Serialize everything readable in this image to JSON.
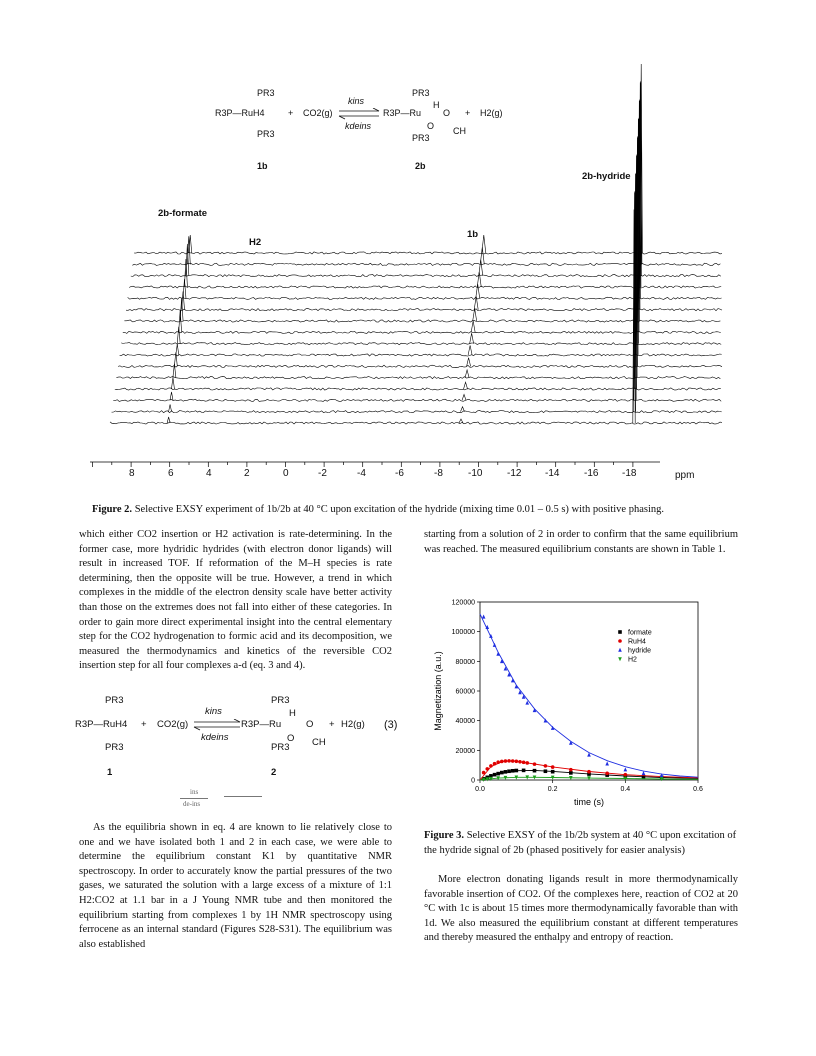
{
  "scheme_top": {
    "left_ligand_top": "PR3",
    "left_center": "R3P—RuH4",
    "left_ligand_bottom": "PR3",
    "plus1": "+",
    "co2": "CO2(g)",
    "k_forward": "kins",
    "k_reverse": "kdeins",
    "right_ligand_top": "PR3",
    "right_H": "H",
    "right_center": "R3P—Ru",
    "right_O1": "O",
    "right_O2": "O",
    "right_CH": "CH",
    "right_ligand_bottom": "PR3",
    "plus2": "+",
    "h2": "H2(g)",
    "label_left": "1b",
    "label_right": "2b"
  },
  "spectrum": {
    "label_formate": "2b-formate",
    "label_h2": "H2",
    "label_1b": "1b",
    "label_hydride": "2b-hydride",
    "axis_ticks": [
      "8",
      "6",
      "4",
      "2",
      "0",
      "-2",
      "-4",
      "-6",
      "-8",
      "-10",
      "-12",
      "-14",
      "-16",
      "-18"
    ],
    "axis_unit": "ppm"
  },
  "figure2_caption": {
    "label": "Figure 2.",
    "text": "Selective EXSY experiment of 1b/2b at 40 °C upon excitation of the hydride (mixing time 0.01 – 0.5 s) with positive phasing."
  },
  "left_column": {
    "para1": "which either CO2 insertion or H2 activation is rate-determining. In the former case, more hydridic hydrides (with electron donor ligands) will result in increased TOF. If reformation of the M–H species is rate determining, then the opposite will be true. However, a trend in which complexes in the middle of the electron density scale have better activity than those on the extremes does not fall into either of these categories. In order to gain more direct experimental insight into the central elementary step for the CO2 hydrogenation to formic acid and its decomposition, we measured the thermodynamics and kinetics of the reversible CO2 insertion step for all four complexes a-d (eq. 3 and 4).",
    "para2": "As the equilibria shown in eq. 4 are known to lie relatively close to one and we have isolated both 1 and 2 in each case, we were able to determine the equilibrium constant K1 by quantitative NMR spectroscopy. In order to accurately know the partial pressures of the two gases, we saturated the solution with a large excess of a mixture of 1:1 H2:CO2 at 1.1 bar in a J Young NMR tube and then monitored the equilibrium starting from complexes 1 by 1H NMR spectroscopy using ferrocene as an internal standard (Figures S28-S31). The equilibrium was also established"
  },
  "equation3": {
    "left_ligand_top": "PR3",
    "left_center": "R3P—RuH4",
    "left_ligand_bottom": "PR3",
    "plus1": "+",
    "co2": "CO2(g)",
    "k_forward": "kins",
    "k_reverse": "kdeins",
    "right_ligand_top": "PR3",
    "right_H": "H",
    "right_center": "R3P—Ru",
    "right_O1": "O",
    "right_O2": "O",
    "right_CH": "CH",
    "right_ligand_bottom": "PR3",
    "plus2": "+",
    "h2": "H2(g)",
    "number": "(3)",
    "label_left": "1",
    "label_right": "2",
    "fraction_top": "ins",
    "fraction_bottom": "de-ins"
  },
  "right_column": {
    "para1": "starting from a solution of 2 in order to confirm that the same equilibrium was reached. The measured equilibrium constants are shown in Table 1.",
    "para2": "More electron donating ligands result in more thermodynamically favorable insertion of CO2. Of the complexes here, reaction of CO2 at 20 °C with 1c is about 15 times more thermodynamically favorable than with 1d. We also measured the equilibrium constant at different temperatures and thereby measured the enthalpy and entropy of reaction."
  },
  "figure3_caption": {
    "label": "Figure 3.",
    "text": "Selective EXSY of the 1b/2b system at 40 °C upon excitation of the hydride signal of 2b (phased positively for easier analysis)"
  },
  "chart_data": {
    "type": "scatter",
    "xlabel": "time (s)",
    "ylabel": "Magnetization (a.u.)",
    "xlim": [
      0.0,
      0.6
    ],
    "ylim": [
      0,
      120000
    ],
    "x_ticks": [
      "0.0",
      "0.2",
      "0.4",
      "0.6"
    ],
    "y_ticks": [
      "0",
      "20000",
      "40000",
      "60000",
      "80000",
      "100000",
      "120000"
    ],
    "legend_position": "top-right",
    "series": [
      {
        "name": "formate",
        "color": "#000000",
        "marker": "square",
        "x": [
          0.01,
          0.02,
          0.03,
          0.04,
          0.05,
          0.06,
          0.07,
          0.08,
          0.09,
          0.1,
          0.12,
          0.15,
          0.18,
          0.2,
          0.25,
          0.3,
          0.35,
          0.4,
          0.45,
          0.5
        ],
        "y": [
          800,
          1800,
          2800,
          3600,
          4300,
          5000,
          5500,
          5900,
          6200,
          6400,
          6500,
          6300,
          5900,
          5600,
          4800,
          4000,
          3300,
          2700,
          2200,
          1800
        ],
        "fit": [
          [
            0.0,
            0
          ],
          [
            0.05,
            4200
          ],
          [
            0.1,
            6300
          ],
          [
            0.15,
            6500
          ],
          [
            0.2,
            5800
          ],
          [
            0.3,
            4100
          ],
          [
            0.4,
            2700
          ],
          [
            0.5,
            1700
          ],
          [
            0.6,
            1100
          ]
        ]
      },
      {
        "name": "RuH4",
        "color": "#e00000",
        "marker": "circle",
        "x": [
          0.01,
          0.02,
          0.03,
          0.04,
          0.05,
          0.06,
          0.07,
          0.08,
          0.09,
          0.1,
          0.11,
          0.12,
          0.13,
          0.15,
          0.18,
          0.2,
          0.25,
          0.3,
          0.35,
          0.4
        ],
        "y": [
          5000,
          7500,
          9500,
          11000,
          12000,
          12500,
          12800,
          12900,
          12800,
          12600,
          12300,
          11900,
          11500,
          10700,
          9500,
          8700,
          7000,
          5600,
          4500,
          3600
        ],
        "fit": [
          [
            0.0,
            0
          ],
          [
            0.03,
            9000
          ],
          [
            0.06,
            12300
          ],
          [
            0.08,
            12900
          ],
          [
            0.1,
            12600
          ],
          [
            0.15,
            10800
          ],
          [
            0.2,
            8800
          ],
          [
            0.3,
            5700
          ],
          [
            0.4,
            3600
          ],
          [
            0.5,
            2300
          ],
          [
            0.6,
            1500
          ]
        ]
      },
      {
        "name": "hydride",
        "color": "#1f2ee0",
        "marker": "triangle-up",
        "x": [
          0.01,
          0.02,
          0.03,
          0.04,
          0.05,
          0.06,
          0.07,
          0.08,
          0.09,
          0.1,
          0.11,
          0.12,
          0.13,
          0.15,
          0.18,
          0.2,
          0.25,
          0.3,
          0.35,
          0.4,
          0.45,
          0.5
        ],
        "y": [
          110000,
          103000,
          97000,
          91000,
          85000,
          80000,
          75000,
          71000,
          67000,
          63000,
          59000,
          56000,
          52000,
          47000,
          40000,
          35000,
          25000,
          17000,
          11000,
          7000,
          4500,
          3000
        ],
        "fit": [
          [
            0.0,
            112000
          ],
          [
            0.05,
            86000
          ],
          [
            0.1,
            64000
          ],
          [
            0.15,
            48000
          ],
          [
            0.2,
            35500
          ],
          [
            0.25,
            26000
          ],
          [
            0.3,
            18500
          ],
          [
            0.35,
            13000
          ],
          [
            0.4,
            9000
          ],
          [
            0.45,
            6000
          ],
          [
            0.5,
            4000
          ],
          [
            0.55,
            2700
          ],
          [
            0.6,
            1900
          ]
        ]
      },
      {
        "name": "H2",
        "color": "#1b9e1b",
        "marker": "triangle-down",
        "x": [
          0.01,
          0.02,
          0.03,
          0.05,
          0.07,
          0.1,
          0.13,
          0.15,
          0.2,
          0.25,
          0.3,
          0.4,
          0.5
        ],
        "y": [
          300,
          600,
          900,
          1300,
          1600,
          1800,
          1900,
          1850,
          1700,
          1500,
          1300,
          1000,
          700
        ],
        "fit": [
          [
            0.0,
            0
          ],
          [
            0.05,
            1300
          ],
          [
            0.1,
            1800
          ],
          [
            0.15,
            1850
          ],
          [
            0.2,
            1700
          ],
          [
            0.3,
            1300
          ],
          [
            0.4,
            1000
          ],
          [
            0.5,
            700
          ],
          [
            0.6,
            500
          ]
        ]
      }
    ]
  }
}
